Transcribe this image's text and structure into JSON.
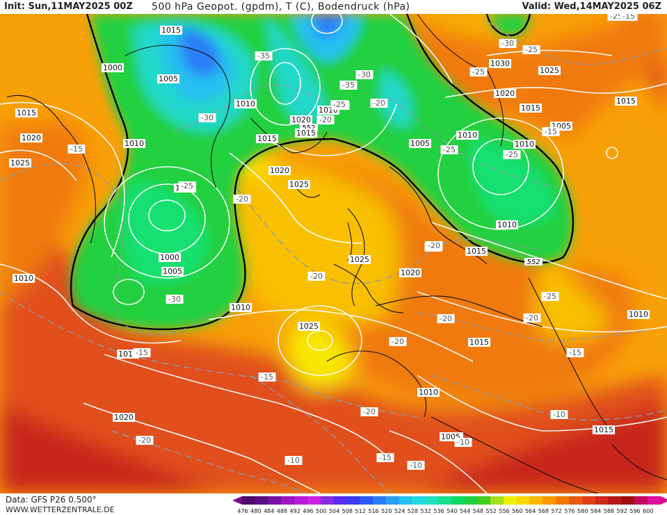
{
  "header": {
    "init": "Init: Sun,11MAY2025 00Z",
    "title": "500 hPa Geopot. (gpdm), T (C), Bodendruck (hPa)",
    "valid": "Valid: Wed,14MAY2025 06Z"
  },
  "footer": {
    "data_source": "Data: GFS P26 0.500°",
    "website": "WWW.WETTERZENTRALE.DE"
  },
  "legend": {
    "values": [
      "476",
      "480",
      "484",
      "488",
      "492",
      "496",
      "500",
      "504",
      "508",
      "512",
      "516",
      "520",
      "524",
      "528",
      "532",
      "536",
      "540",
      "544",
      "548",
      "552",
      "556",
      "560",
      "564",
      "568",
      "572",
      "576",
      "580",
      "584",
      "588",
      "592",
      "596",
      "600"
    ],
    "colors": [
      "#4b0a6b",
      "#5c0f86",
      "#7a12a6",
      "#9a16c2",
      "#b91ad8",
      "#cc22e8",
      "#8a2be2",
      "#5a2df0",
      "#3a3cf5",
      "#2a5af8",
      "#2a7cf8",
      "#2aa0f5",
      "#26c0f0",
      "#22d8e0",
      "#20e0c0",
      "#18e090",
      "#10d860",
      "#20d040",
      "#40d020",
      "#a8e020",
      "#f0f000",
      "#f8d800",
      "#f8b800",
      "#f89800",
      "#f07800",
      "#e85a10",
      "#e04018",
      "#d02818",
      "#b81818",
      "#a01010",
      "#c00860",
      "#e010a0"
    ],
    "left_arrow_color": "#7a0a8a",
    "right_arrow_color": "#d0108a"
  },
  "map": {
    "geopotential_552_label": "552",
    "pressure_labels": [
      {
        "text": "1015"
      },
      {
        "text": "1000"
      },
      {
        "text": "1005"
      },
      {
        "text": "1010"
      },
      {
        "text": "1015"
      },
      {
        "text": "1020"
      },
      {
        "text": "1025"
      },
      {
        "text": "1010"
      },
      {
        "text": "1005"
      },
      {
        "text": "1000"
      },
      {
        "text": "1005"
      },
      {
        "text": "1010"
      },
      {
        "text": "1015"
      },
      {
        "text": "1020"
      },
      {
        "text": "1025"
      },
      {
        "text": "1015"
      },
      {
        "text": "1020"
      },
      {
        "text": "1010"
      },
      {
        "text": "1020"
      },
      {
        "text": "1015"
      },
      {
        "text": "1025"
      },
      {
        "text": "1020"
      },
      {
        "text": "1005"
      },
      {
        "text": "1005"
      },
      {
        "text": "1010"
      },
      {
        "text": "1020"
      },
      {
        "text": "1030"
      },
      {
        "text": "1025"
      },
      {
        "text": "1015"
      },
      {
        "text": "1005"
      },
      {
        "text": "1010"
      },
      {
        "text": "1010"
      },
      {
        "text": "1015"
      },
      {
        "text": "1015"
      },
      {
        "text": "1010"
      },
      {
        "text": "1005"
      },
      {
        "text": "1015"
      },
      {
        "text": "1010"
      },
      {
        "text": "1025"
      },
      {
        "text": "1015"
      },
      {
        "text": "1010"
      }
    ],
    "temperature_labels": [
      {
        "text": "-15"
      },
      {
        "text": "-25"
      },
      {
        "text": "-30"
      },
      {
        "text": "-25"
      },
      {
        "text": "-20"
      },
      {
        "text": "-20"
      },
      {
        "text": "-15"
      },
      {
        "text": "-30"
      },
      {
        "text": "-35"
      },
      {
        "text": "-30"
      },
      {
        "text": "-35"
      },
      {
        "text": "-25"
      },
      {
        "text": "-20"
      },
      {
        "text": "-20"
      },
      {
        "text": "-25"
      },
      {
        "text": "-25"
      },
      {
        "text": "-25"
      },
      {
        "text": "-25"
      },
      {
        "text": "-30"
      },
      {
        "text": "-25"
      },
      {
        "text": "-15"
      },
      {
        "text": "-15"
      },
      {
        "text": "-20"
      },
      {
        "text": "-20"
      },
      {
        "text": "-20"
      },
      {
        "text": "-20"
      },
      {
        "text": "-20"
      },
      {
        "text": "-25"
      },
      {
        "text": "-20"
      },
      {
        "text": "-15"
      },
      {
        "text": "-15"
      },
      {
        "text": "-20"
      },
      {
        "text": "-15"
      },
      {
        "text": "-10"
      },
      {
        "text": "-10"
      },
      {
        "text": "-15"
      },
      {
        "text": "-10"
      },
      {
        "text": "-10"
      },
      {
        "text": "-20"
      }
    ],
    "bg_colors": {
      "deep_red": "#c8281a",
      "red_orange": "#e0501a",
      "orange": "#f07a10",
      "light_orange": "#f8a008",
      "yellow_orange": "#f8c000",
      "yellow": "#f8e800",
      "green": "#20d040",
      "bright_green": "#18e070",
      "teal": "#20d8c8",
      "cyan": "#26c0f0",
      "blue": "#2a80f8",
      "deep_blue": "#3040f0"
    }
  }
}
